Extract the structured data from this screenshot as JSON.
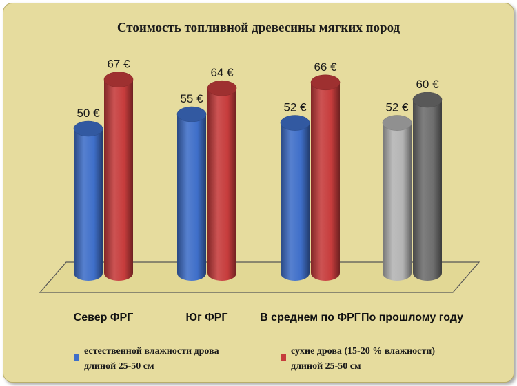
{
  "chart_data": {
    "type": "bar",
    "title": "Стоимость топливной древесины мягких пород",
    "categories": [
      "Север ФРГ",
      "Юг ФРГ",
      "В среднем по ФРГ",
      "По прошлому году"
    ],
    "series": [
      {
        "name": "естественной влажности дрова длиной 25-50 см",
        "values": [
          50,
          55,
          52,
          52
        ],
        "labels": [
          "50 €",
          "55 €",
          "52 €",
          "52 €"
        ],
        "color": "#3f6fc9"
      },
      {
        "name": "сухие дрова (15-20 % влажности) длиной 25-50 см",
        "values": [
          67,
          64,
          66,
          60
        ],
        "labels": [
          "67 €",
          "64 €",
          "66 €",
          "60 €"
        ],
        "color": "#c63c3c"
      }
    ],
    "highlight_category_colors": {
      "По прошлому году": [
        "#b4b4b4",
        "#6e6e6e"
      ]
    },
    "legend": {
      "placement": "bottom",
      "items": [
        {
          "line1": "естественной влажности дрова",
          "line2": "длиной 25-50 см",
          "color": "#3f6fc9"
        },
        {
          "line1": "сухие дрова (15-20 % влажности)",
          "line2": "длиной 25-50 см",
          "color": "#c63c3c"
        }
      ]
    },
    "grid": false,
    "ylim": [
      0,
      70
    ],
    "style": "3d-cylinder"
  },
  "colors": {
    "background": "#e6dc9e",
    "floor": "#e2d895"
  }
}
